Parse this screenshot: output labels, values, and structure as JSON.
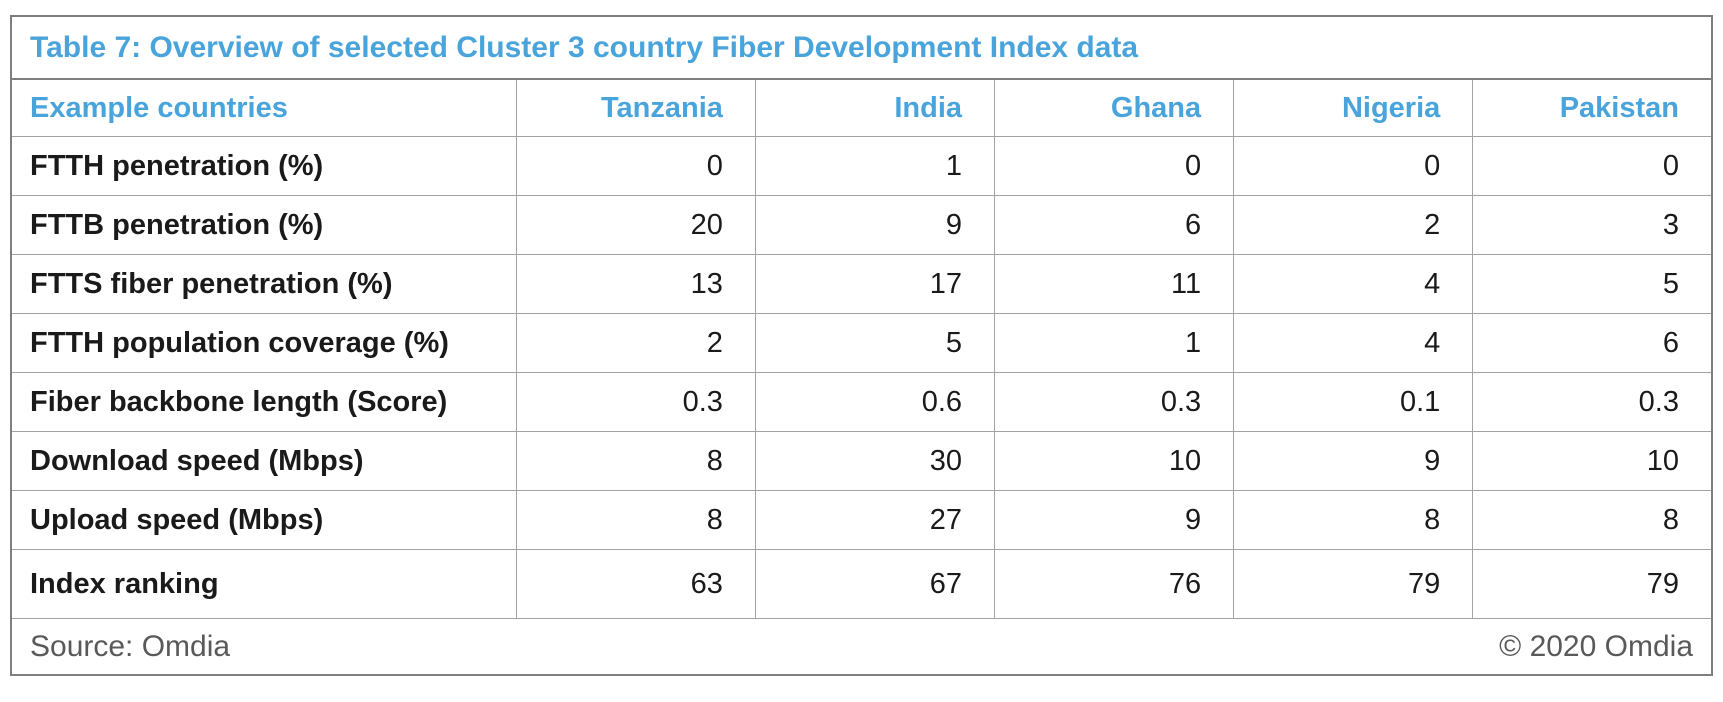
{
  "title": "Table 7: Overview of selected Cluster 3 country Fiber Development Index data",
  "table": {
    "header": [
      "Example countries",
      "Tanzania",
      "India",
      "Ghana",
      "Nigeria",
      "Pakistan"
    ],
    "rows": [
      {
        "label": "FTTH penetration (%)",
        "values": [
          "0",
          "1",
          "0",
          "0",
          "0"
        ]
      },
      {
        "label": "FTTB penetration (%)",
        "values": [
          "20",
          "9",
          "6",
          "2",
          "3"
        ]
      },
      {
        "label": "FTTS fiber penetration (%)",
        "values": [
          "13",
          "17",
          "11",
          "4",
          "5"
        ]
      },
      {
        "label": "FTTH population coverage (%)",
        "values": [
          "2",
          "5",
          "1",
          "4",
          "6"
        ]
      },
      {
        "label": "Fiber backbone length (Score)",
        "values": [
          "0.3",
          "0.6",
          "0.3",
          "0.1",
          "0.3"
        ]
      },
      {
        "label": "Download speed (Mbps)",
        "values": [
          "8",
          "30",
          "10",
          "9",
          "10"
        ]
      },
      {
        "label": "Upload speed (Mbps)",
        "values": [
          "8",
          "27",
          "9",
          "8",
          "8"
        ]
      },
      {
        "label": "Index ranking",
        "values": [
          "63",
          "67",
          "76",
          "79",
          "79"
        ]
      }
    ]
  },
  "footer": {
    "source": "Source: Omdia",
    "copyright": "© 2020 Omdia"
  },
  "colors": {
    "accent_blue": "#4aa4dc",
    "body_text": "#1a1a1a",
    "footer_text": "#595959",
    "outer_border": "#7f7f7f",
    "inner_border": "#a3a3a3"
  }
}
